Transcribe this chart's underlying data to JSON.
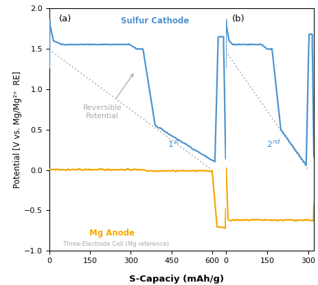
{
  "xlabel": "S-Capaciy (mAh/g)",
  "ylabel": "Potential [V vs. Mg/Mg²⁺  RE]",
  "ylim": [
    -1.0,
    2.0
  ],
  "xlim_a": [
    0,
    650
  ],
  "xlim_b": [
    0,
    320
  ],
  "yticks": [
    -1.0,
    -0.5,
    0.0,
    0.5,
    1.0,
    1.5,
    2.0
  ],
  "xticks_a": [
    0,
    150,
    300,
    450,
    600
  ],
  "xticks_b": [
    0,
    150,
    300
  ],
  "blue_color": "#4d93d0",
  "yellow_color": "#f5a800",
  "gray_dot_color": "#aaaaaa",
  "label_sulfur": "Sulfur Cathode",
  "label_anode": "Mg Anode",
  "label_rev": "Reversible\nPotential",
  "label_cell": "Three-Electrode Cell (Mg reference)"
}
